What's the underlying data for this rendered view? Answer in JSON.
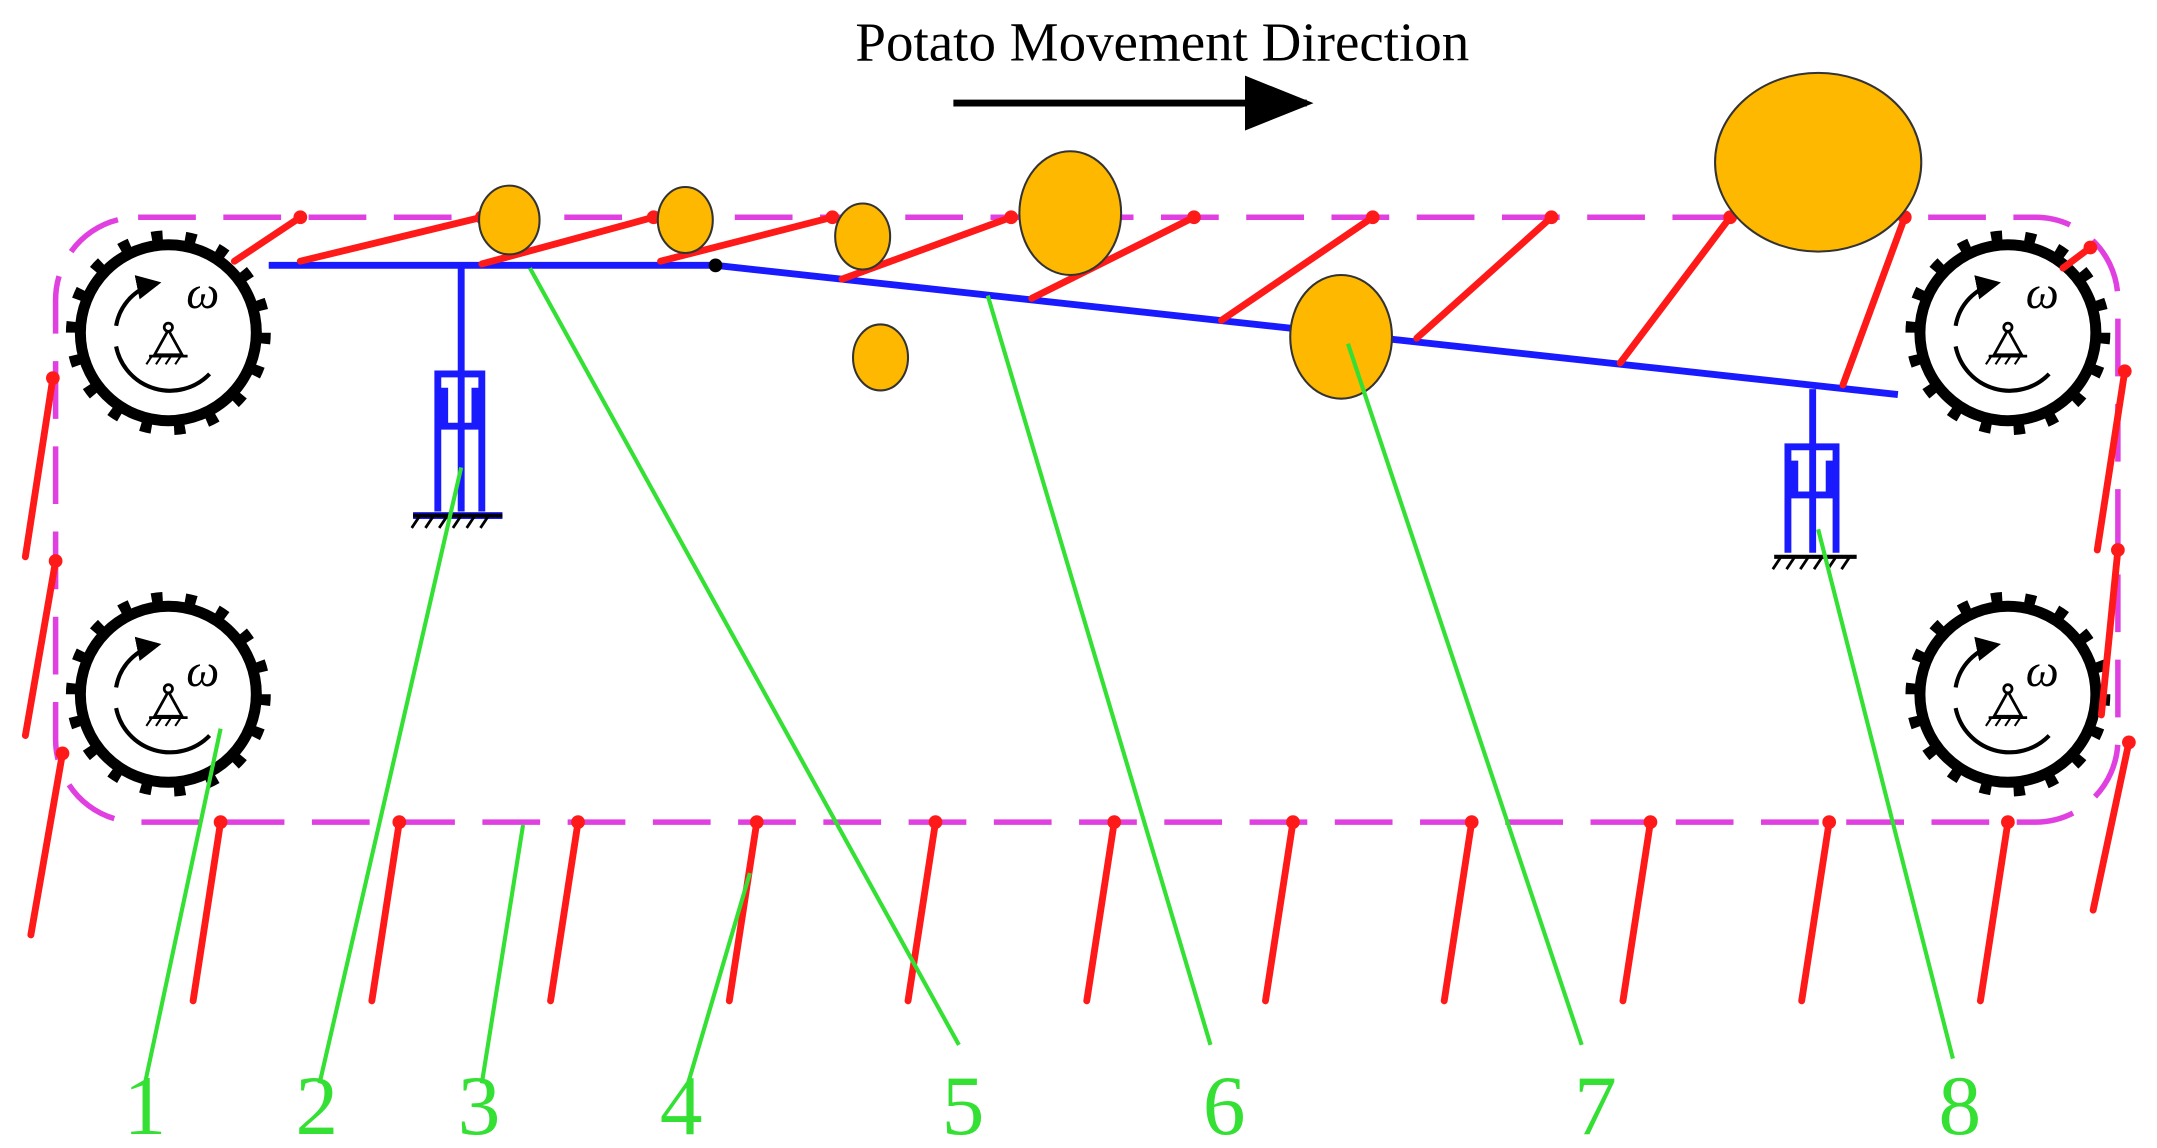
{
  "title": "Potato Movement Direction",
  "wheels": [
    {
      "label": "ω"
    },
    {
      "label": "ω"
    },
    {
      "label": "ω"
    },
    {
      "label": "ω"
    }
  ],
  "callouts": [
    {
      "label": "1"
    },
    {
      "label": "2"
    },
    {
      "label": "3"
    },
    {
      "label": "4"
    },
    {
      "label": "5"
    },
    {
      "label": "6"
    },
    {
      "label": "7"
    },
    {
      "label": "8"
    }
  ]
}
